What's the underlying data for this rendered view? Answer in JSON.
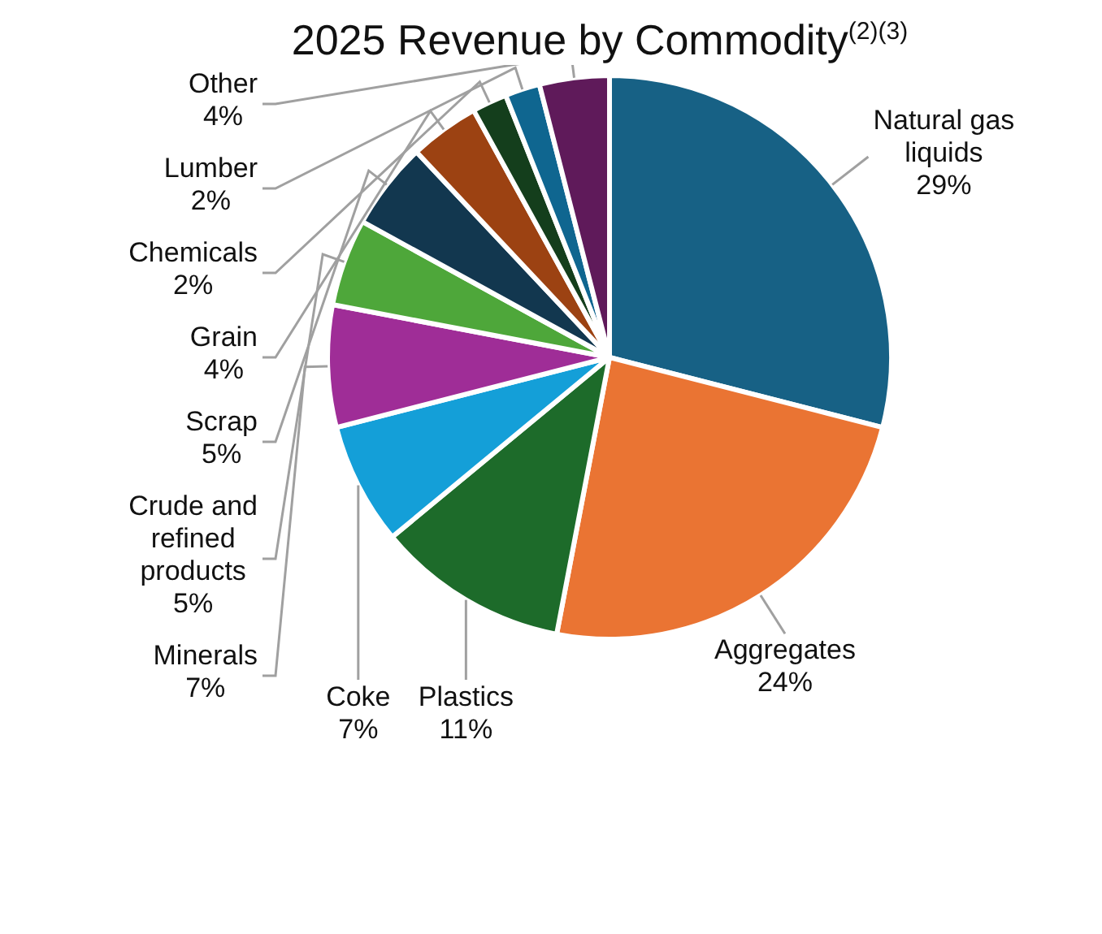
{
  "chart_data": {
    "type": "pie",
    "title": "2025 Revenue by Commodity$^{(2)(3)}$",
    "categories": [
      "Natural gas liquids",
      "Aggregates",
      "Plastics",
      "Coke",
      "Minerals",
      "Crude and refined products",
      "Scrap",
      "Grain",
      "Chemicals",
      "Lumber",
      "Other"
    ],
    "values": [
      29,
      24,
      11,
      7,
      7,
      5,
      5,
      4,
      2,
      2,
      4
    ],
    "value_labels": [
      "29%",
      "24%",
      "11%",
      "7%",
      "7%",
      "5%",
      "5%",
      "4%",
      "2%",
      "2%",
      "4%"
    ],
    "colors": [
      "#176185",
      "#ea7433",
      "#1d6b2a",
      "#149fd8",
      "#9f2d97",
      "#4ea73a",
      "#12374f",
      "#9c4212",
      "#143e1c",
      "#0f6690",
      "#5f1a5a"
    ],
    "legend": false
  }
}
